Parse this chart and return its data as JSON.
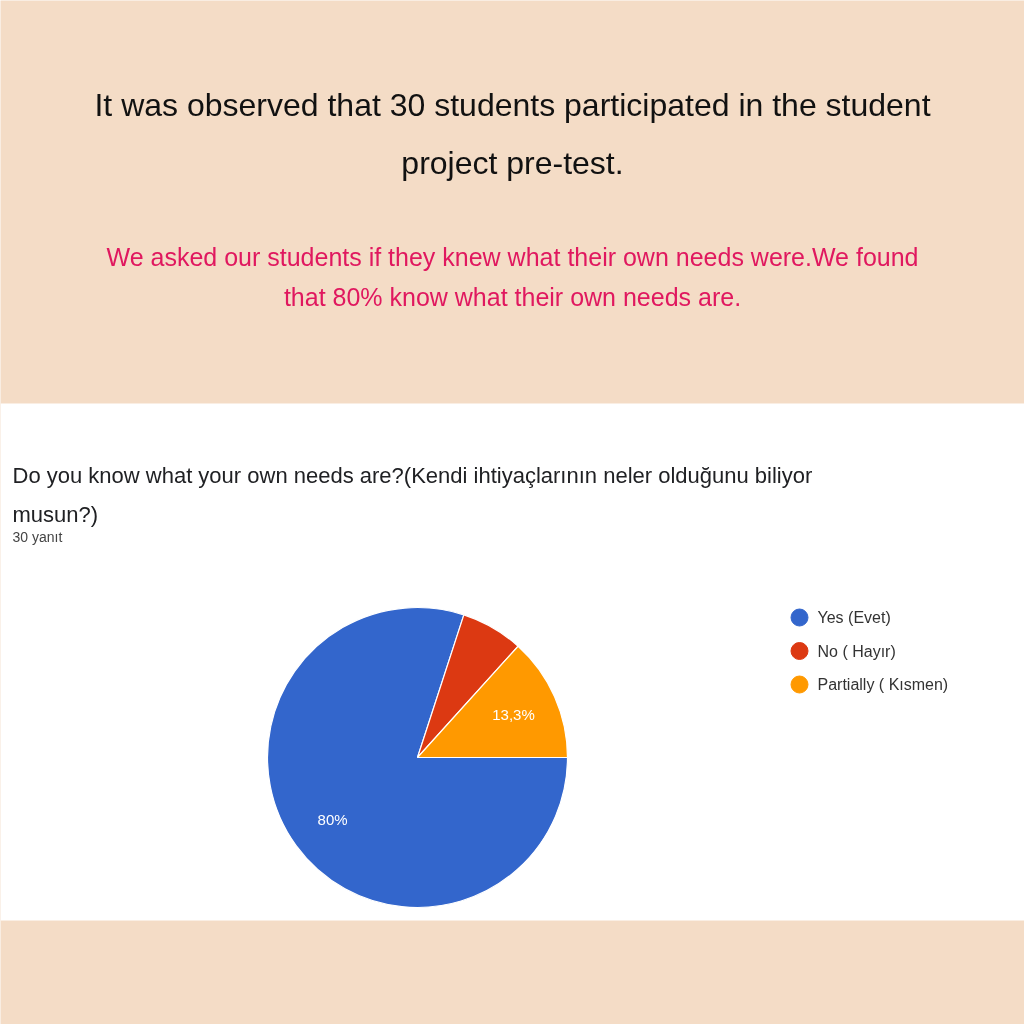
{
  "chart_data": {
    "type": "pie",
    "title": "Do you know what your own needs are?(Kendi ihtiyaçlarının neler olduğunu biliyor musun?)",
    "subtitle": "30 yanıt",
    "annotations": [
      "It was observed that 30 students participated in the student project pre-test.",
      "We asked our students if they knew what their own needs were.We found that 80% know what their own needs are."
    ],
    "categories": [
      "Yes (Evet)",
      "No ( Hayır)",
      "Partially ( Kısmen)"
    ],
    "values": [
      80,
      6.7,
      13.3
    ],
    "colors": [
      "#3366cc",
      "#dc3912",
      "#ff9900"
    ],
    "value_labels": [
      "80%",
      null,
      "13,3%"
    ],
    "legend": "top right"
  }
}
